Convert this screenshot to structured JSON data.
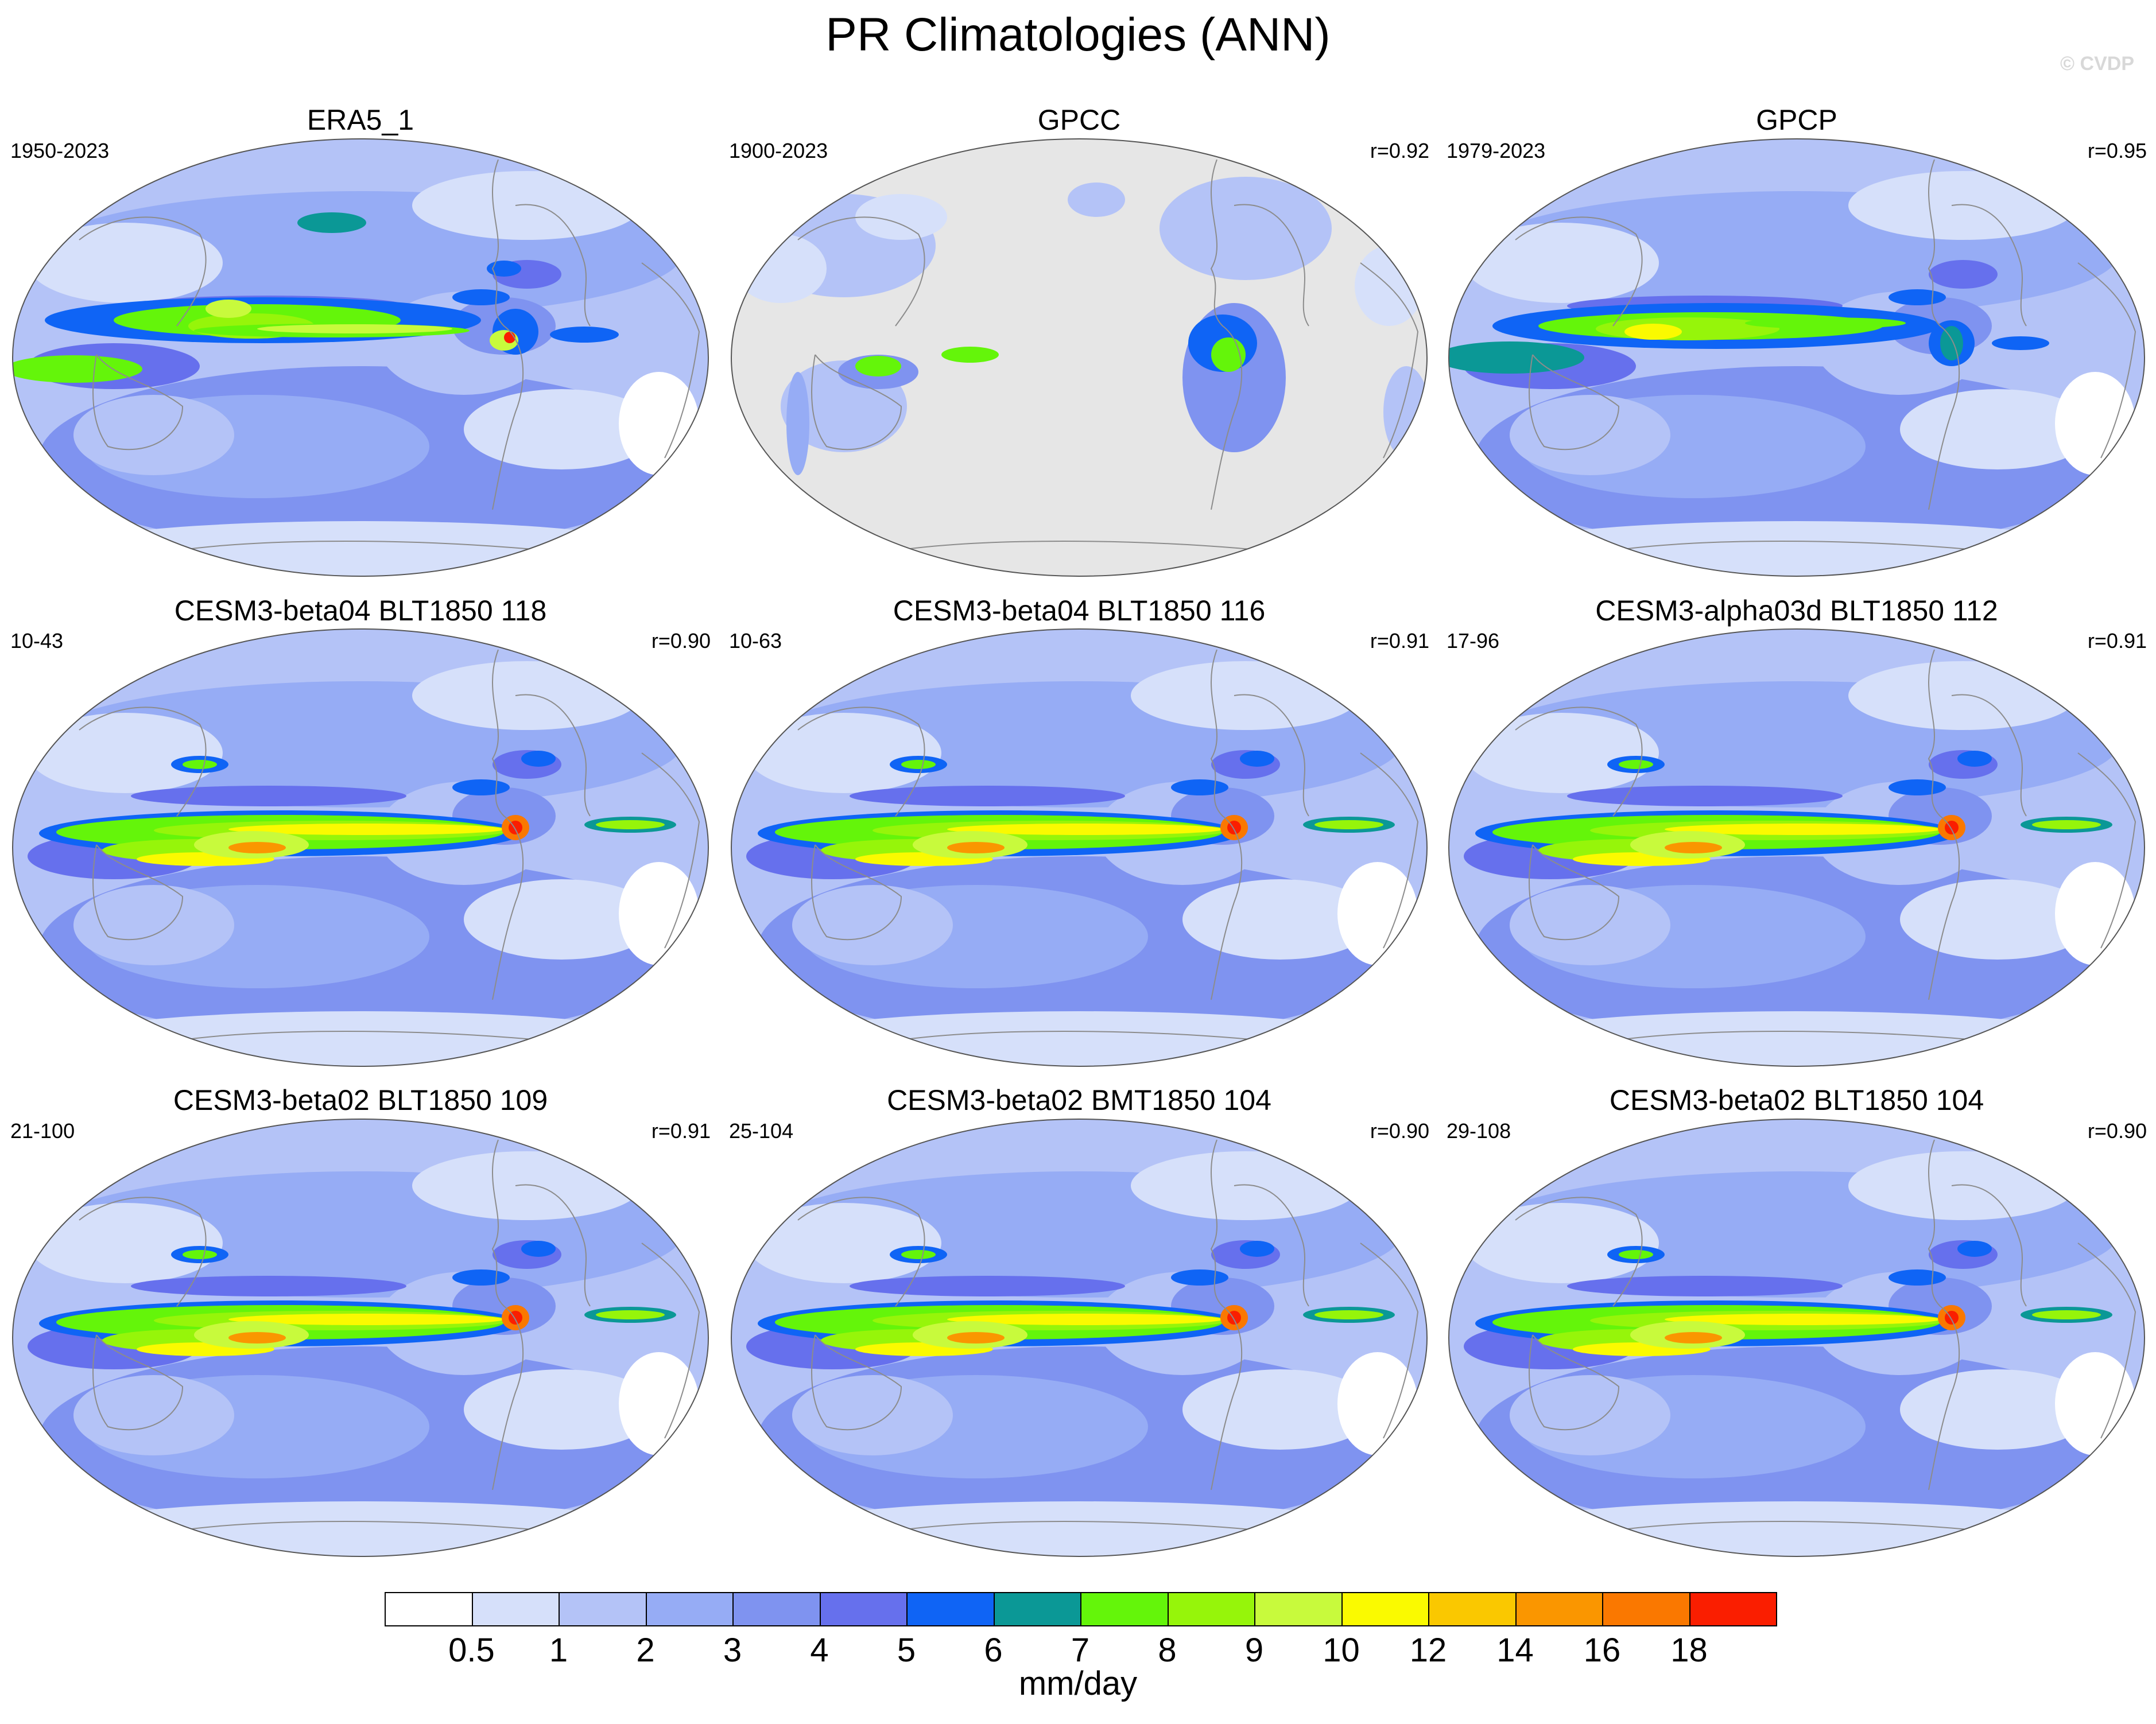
{
  "title": "PR Climatologies (ANN)",
  "watermark": "© CVDP",
  "panels": [
    {
      "title": "ERA5_1",
      "years": "1950-2023",
      "corr": "",
      "kind": "obs"
    },
    {
      "title": "GPCC",
      "years": "1900-2023",
      "corr": "r=0.92",
      "kind": "land"
    },
    {
      "title": "GPCP",
      "years": "1979-2023",
      "corr": "r=0.95",
      "kind": "obs2"
    },
    {
      "title": "CESM3-beta04 BLT1850 118",
      "years": "10-43",
      "corr": "r=0.90",
      "kind": "model"
    },
    {
      "title": "CESM3-beta04 BLT1850 116",
      "years": "10-63",
      "corr": "r=0.91",
      "kind": "model"
    },
    {
      "title": "CESM3-alpha03d BLT1850 112",
      "years": "17-96",
      "corr": "r=0.91",
      "kind": "model"
    },
    {
      "title": "CESM3-beta02 BLT1850 109",
      "years": "21-100",
      "corr": "r=0.91",
      "kind": "model"
    },
    {
      "title": "CESM3-beta02 BMT1850 104",
      "years": "25-104",
      "corr": "r=0.90",
      "kind": "model"
    },
    {
      "title": "CESM3-beta02 BLT1850 104",
      "years": "29-108",
      "corr": "r=0.90",
      "kind": "model"
    }
  ],
  "colorbar": {
    "units": "mm/day",
    "labels": [
      "0.5",
      "1",
      "2",
      "3",
      "4",
      "5",
      "6",
      "7",
      "8",
      "9",
      "10",
      "12",
      "14",
      "16",
      "18"
    ],
    "colors": [
      "#ffffff",
      "#d6e0fa",
      "#b4c3f7",
      "#96acf5",
      "#7f93f0",
      "#6670ed",
      "#0f64f5",
      "#0b9896",
      "#64f50a",
      "#96f50a",
      "#c8fa3c",
      "#fafa00",
      "#fac800",
      "#fa9600",
      "#fa7800",
      "#fa1e00"
    ]
  },
  "colors": {
    "land_missing": "#e6e6e6",
    "coastline": "#8c8c8c"
  }
}
